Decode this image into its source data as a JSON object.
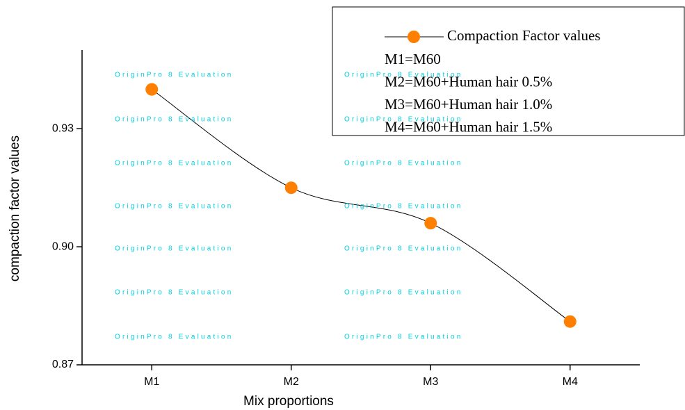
{
  "chart_data": {
    "type": "line",
    "categories": [
      "M1",
      "M2",
      "M3",
      "M4"
    ],
    "series": [
      {
        "name": "Compaction Factor values",
        "color": "#ff8000",
        "values": [
          0.94,
          0.915,
          0.906,
          0.881
        ]
      }
    ],
    "ylim": [
      0.87,
      0.95
    ],
    "yticks": [
      {
        "value": 0.87,
        "label": "0.87"
      },
      {
        "value": 0.9,
        "label": "0.90"
      },
      {
        "value": 0.93,
        "label": "0.93"
      }
    ],
    "x_label": "Mix proportions",
    "y_label": "compaction factor values",
    "annotations": [
      "M1=M60",
      "M2=M60+Human hair 0.5%",
      "M3=M60+Human hair 1.0%",
      "M4=M60+Human hair 1.5%"
    ],
    "watermark": "OriginPro 8 Evaluation"
  }
}
